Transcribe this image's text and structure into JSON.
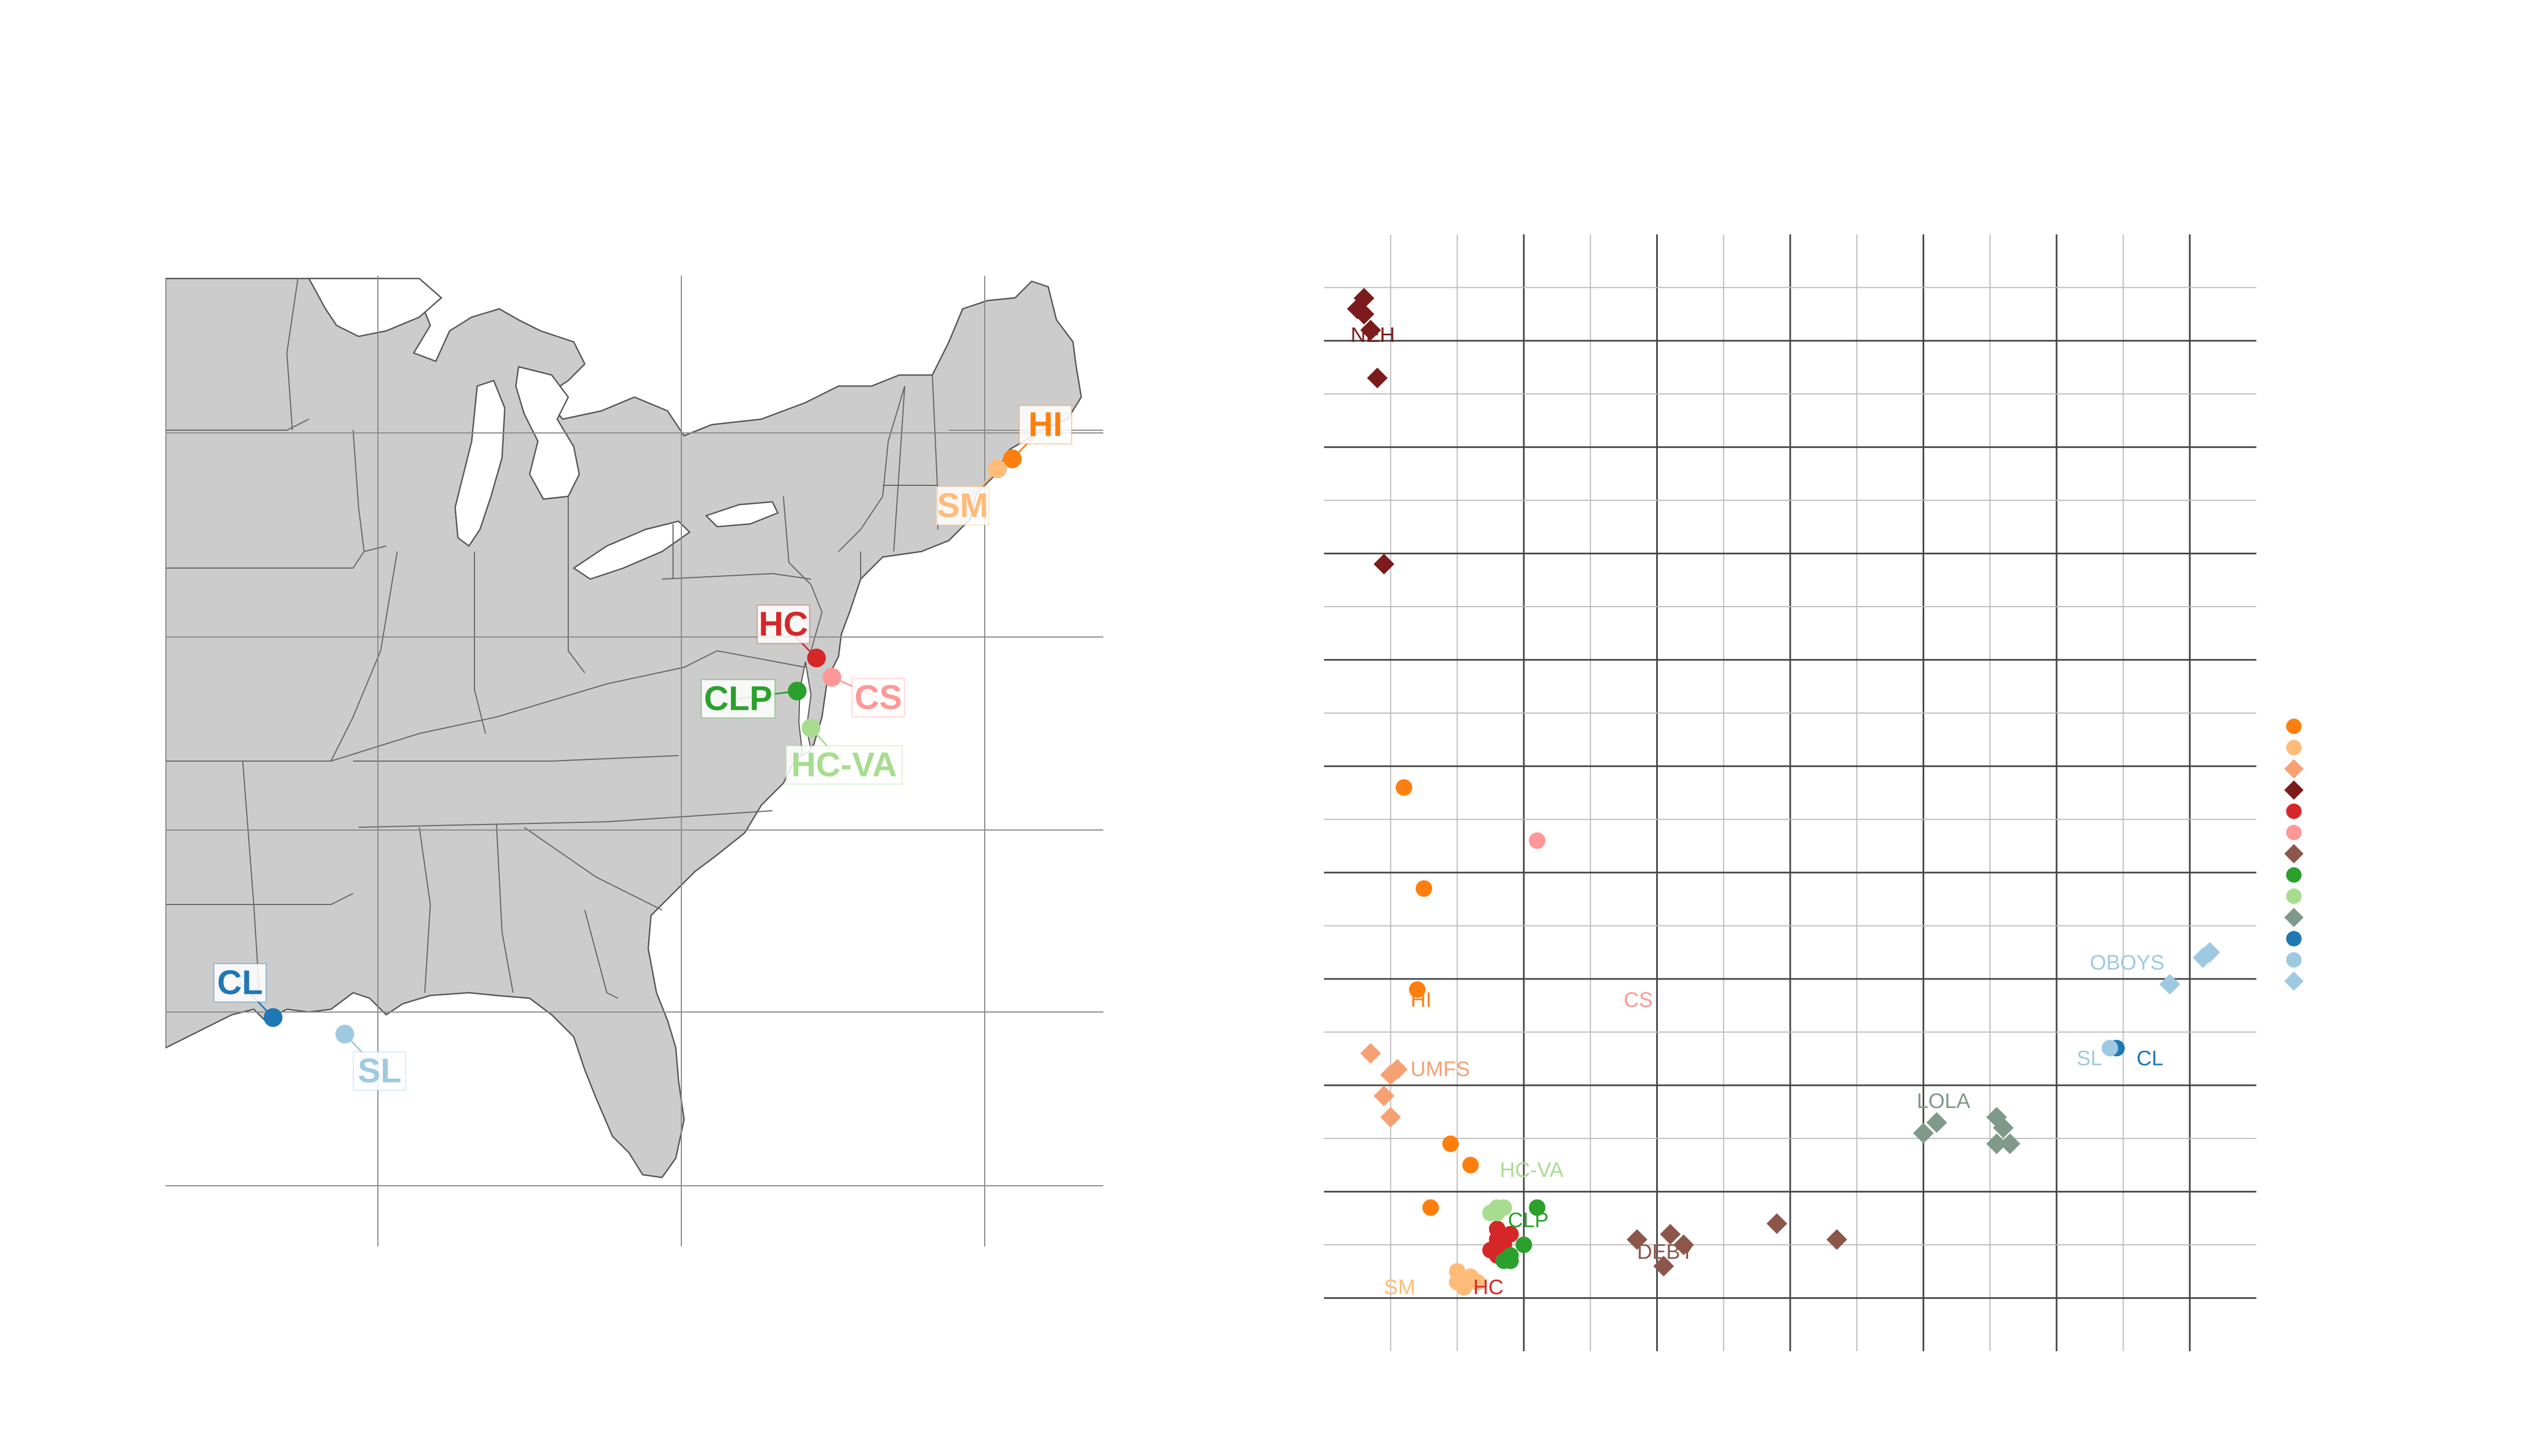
{
  "colors": {
    "land": "#cccccc",
    "land_edge": "#555555",
    "grid_minor": "#bbbbbb",
    "grid_major": "#444444",
    "HI": "#ff7f0e",
    "SM": "#ffbb78",
    "UMFS": "#f7a072",
    "NEH": "#7b1b1b",
    "HC": "#d62728",
    "CS": "#ff9896",
    "DEBY": "#8c564b",
    "CLP": "#2ca02c",
    "HC-VA": "#a8dc8f",
    "LOLA": "#7f9a8a",
    "CL": "#1f77b4",
    "SL": "#9ecae1",
    "OBOYS": "#9ecae1"
  },
  "map": {
    "sites": [
      {
        "name": "HI",
        "label": "HI",
        "color_key": "HI"
      },
      {
        "name": "SM",
        "label": "SM",
        "color_key": "SM"
      },
      {
        "name": "HC",
        "label": "HC",
        "color_key": "HC"
      },
      {
        "name": "CS",
        "label": "CS",
        "color_key": "CS"
      },
      {
        "name": "CLP",
        "label": "CLP",
        "color_key": "CLP"
      },
      {
        "name": "HC-VA",
        "label": "HC-VA",
        "color_key": "HC-VA"
      },
      {
        "name": "CL",
        "label": "CL",
        "color_key": "CL"
      },
      {
        "name": "SL",
        "label": "SL",
        "color_key": "SL"
      }
    ]
  },
  "chart_data": {
    "type": "scatter",
    "title": "",
    "xlabel": "",
    "ylabel": "",
    "xlim": [
      0,
      100
    ],
    "ylim": [
      0,
      100
    ],
    "grid": true,
    "legend_position": "right",
    "series": [
      {
        "name": "HI",
        "marker": "circle",
        "color_key": "HI",
        "points": [
          [
            1,
            48
          ],
          [
            2.5,
            38.5
          ],
          [
            2,
            29
          ],
          [
            4.5,
            14.5
          ],
          [
            6,
            12.5
          ],
          [
            3,
            8.5
          ]
        ]
      },
      {
        "name": "SM",
        "marker": "circle",
        "color_key": "SM",
        "points": [
          [
            5,
            1.5
          ],
          [
            6,
            2
          ],
          [
            5.5,
            1
          ],
          [
            6.5,
            1.5
          ],
          [
            5,
            2.5
          ]
        ]
      },
      {
        "name": "UMFS",
        "marker": "diamond",
        "color_key": "UMFS",
        "points": [
          [
            -1.5,
            23
          ],
          [
            0.5,
            21.5
          ],
          [
            0,
            21
          ],
          [
            -0.5,
            19
          ],
          [
            0,
            17
          ]
        ]
      },
      {
        "name": "NEH",
        "marker": "diamond",
        "color_key": "NEH",
        "points": [
          [
            -2,
            94
          ],
          [
            -2.5,
            93
          ],
          [
            -2,
            92.5
          ],
          [
            -1.5,
            91
          ],
          [
            -1,
            86.5
          ],
          [
            -0.5,
            69
          ]
        ]
      },
      {
        "name": "HC",
        "marker": "circle",
        "color_key": "HC",
        "points": [
          [
            8,
            6.5
          ],
          [
            8,
            5.5
          ],
          [
            8.5,
            5
          ],
          [
            7.5,
            4.5
          ],
          [
            8,
            4
          ],
          [
            9,
            6
          ]
        ]
      },
      {
        "name": "CS",
        "marker": "circle",
        "color_key": "CS",
        "points": [
          [
            11,
            43
          ]
        ]
      },
      {
        "name": "DEBY",
        "marker": "diamond",
        "color_key": "DEBY",
        "points": [
          [
            18.5,
            5.5
          ],
          [
            21,
            6
          ],
          [
            22,
            5
          ],
          [
            20.5,
            3
          ],
          [
            29,
            7
          ],
          [
            33.5,
            5.5
          ]
        ]
      },
      {
        "name": "CLP",
        "marker": "circle",
        "color_key": "CLP",
        "points": [
          [
            11,
            8.5
          ],
          [
            10,
            5
          ],
          [
            9,
            4
          ],
          [
            8.5,
            3.5
          ],
          [
            9,
            3.5
          ]
        ]
      },
      {
        "name": "HC-VA",
        "marker": "circle",
        "color_key": "HC-VA",
        "points": [
          [
            8,
            8
          ],
          [
            7.5,
            8
          ],
          [
            8.5,
            8.5
          ],
          [
            8,
            8.5
          ]
        ]
      },
      {
        "name": "LOLA",
        "marker": "diamond",
        "color_key": "LOLA",
        "points": [
          [
            40,
            15.5
          ],
          [
            41,
            16.5
          ],
          [
            45.5,
            17
          ],
          [
            46,
            16
          ],
          [
            45.5,
            14.5
          ],
          [
            46.5,
            14.5
          ]
        ]
      },
      {
        "name": "CL",
        "marker": "circle",
        "color_key": "CL",
        "points": [
          [
            54.5,
            23.5
          ]
        ]
      },
      {
        "name": "SL",
        "marker": "circle",
        "color_key": "SL",
        "points": [
          [
            54,
            23.5
          ]
        ]
      },
      {
        "name": "OBOYS",
        "marker": "diamond",
        "color_key": "OBOYS",
        "points": [
          [
            61,
            32
          ],
          [
            61.5,
            32.5
          ],
          [
            58.5,
            29.5
          ]
        ]
      }
    ],
    "annotations": [
      {
        "text": "NEH",
        "x": -3,
        "y": 90.5,
        "color_key": "NEH"
      },
      {
        "text": "HI",
        "x": 1.5,
        "y": 28,
        "color_key": "HI"
      },
      {
        "text": "CS",
        "x": 17.5,
        "y": 28,
        "color_key": "CS"
      },
      {
        "text": "UMFS",
        "x": 1.5,
        "y": 21.5,
        "color_key": "UMFS"
      },
      {
        "text": "HC-VA",
        "x": 8.2,
        "y": 12,
        "color_key": "HC-VA"
      },
      {
        "text": "CLP",
        "x": 8.8,
        "y": 7.3,
        "color_key": "CLP"
      },
      {
        "text": "DEBY",
        "x": 18.5,
        "y": 4.3,
        "color_key": "DEBY"
      },
      {
        "text": "SM",
        "x": -0.5,
        "y": 1,
        "color_key": "SM"
      },
      {
        "text": "HC",
        "x": 6.2,
        "y": 1,
        "color_key": "HC"
      },
      {
        "text": "LOLA",
        "x": 39.5,
        "y": 18.5,
        "color_key": "LOLA"
      },
      {
        "text": "SL",
        "x": 51.5,
        "y": 22.5,
        "color_key": "SL"
      },
      {
        "text": "CL",
        "x": 56,
        "y": 22.5,
        "color_key": "CL"
      },
      {
        "text": "OBOYS",
        "x": 52.5,
        "y": 31.5,
        "color_key": "OBOYS"
      }
    ],
    "legend": [
      {
        "marker": "circle",
        "color_key": "HI"
      },
      {
        "marker": "circle",
        "color_key": "SM"
      },
      {
        "marker": "diamond",
        "color_key": "UMFS"
      },
      {
        "marker": "diamond",
        "color_key": "NEH"
      },
      {
        "marker": "circle",
        "color_key": "HC"
      },
      {
        "marker": "circle",
        "color_key": "CS"
      },
      {
        "marker": "diamond",
        "color_key": "DEBY"
      },
      {
        "marker": "circle",
        "color_key": "CLP"
      },
      {
        "marker": "circle",
        "color_key": "HC-VA"
      },
      {
        "marker": "diamond",
        "color_key": "LOLA"
      },
      {
        "marker": "circle",
        "color_key": "CL"
      },
      {
        "marker": "circle",
        "color_key": "SL"
      },
      {
        "marker": "diamond",
        "color_key": "OBOYS"
      }
    ]
  }
}
